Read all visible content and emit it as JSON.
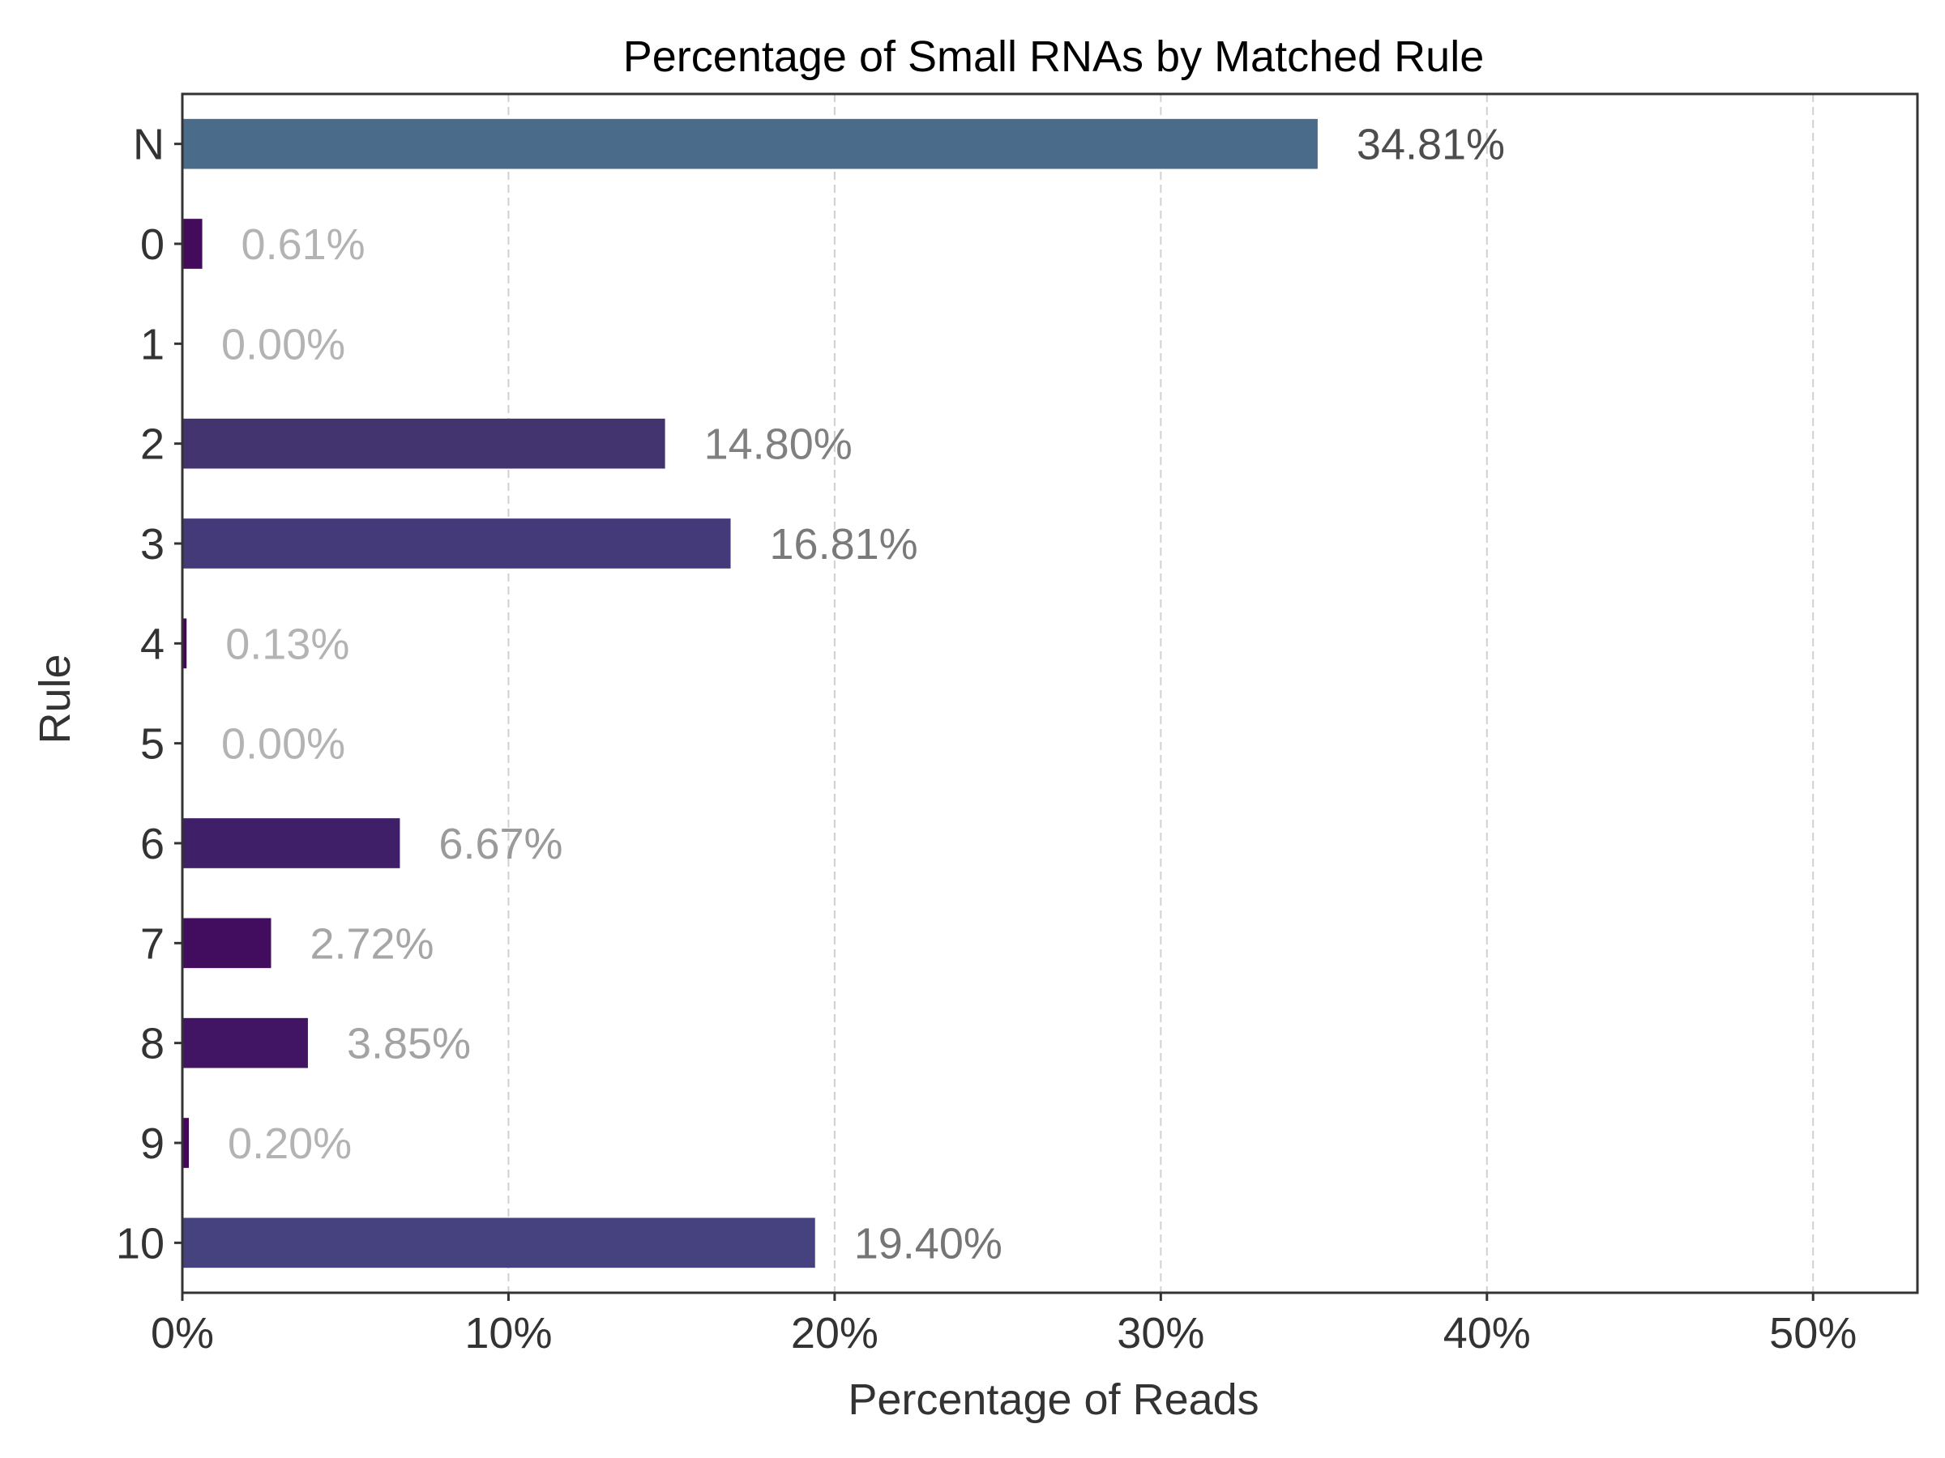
{
  "chart_data": {
    "type": "bar",
    "orientation": "horizontal",
    "title": "Percentage of Small RNAs by Matched Rule",
    "xlabel": "Percentage of Reads",
    "ylabel": "Rule",
    "categories": [
      "N",
      "0",
      "1",
      "2",
      "3",
      "4",
      "5",
      "6",
      "7",
      "8",
      "9",
      "10"
    ],
    "values": [
      34.81,
      0.61,
      0.0,
      14.8,
      16.81,
      0.13,
      0.0,
      6.67,
      2.72,
      3.85,
      0.2,
      19.4
    ],
    "data_labels": [
      "34.81%",
      "0.61%",
      "0.00%",
      "14.80%",
      "16.81%",
      "0.13%",
      "0.00%",
      "6.67%",
      "2.72%",
      "3.85%",
      "0.20%",
      "19.40%"
    ],
    "bar_colors": [
      "#4a6b8a",
      "#440a5c",
      "#440154",
      "#43336e",
      "#443a7a",
      "#44055a",
      "#440154",
      "#3f1f68",
      "#420d5e",
      "#411563",
      "#44065a",
      "#45427f"
    ],
    "label_colors": [
      "#4d4d4d",
      "#b3b3b3",
      "#b3b3b3",
      "#808080",
      "#7a7a7a",
      "#b3b3b3",
      "#b3b3b3",
      "#9a9a9a",
      "#a6a6a6",
      "#a3a3a3",
      "#b3b3b3",
      "#757575"
    ],
    "xlim": [
      0,
      53.2
    ],
    "xticks": [
      0,
      10,
      20,
      30,
      40,
      50
    ],
    "xtick_labels": [
      "0%",
      "10%",
      "20%",
      "30%",
      "40%",
      "50%"
    ],
    "grid": "x-dashed",
    "legend": "none"
  }
}
